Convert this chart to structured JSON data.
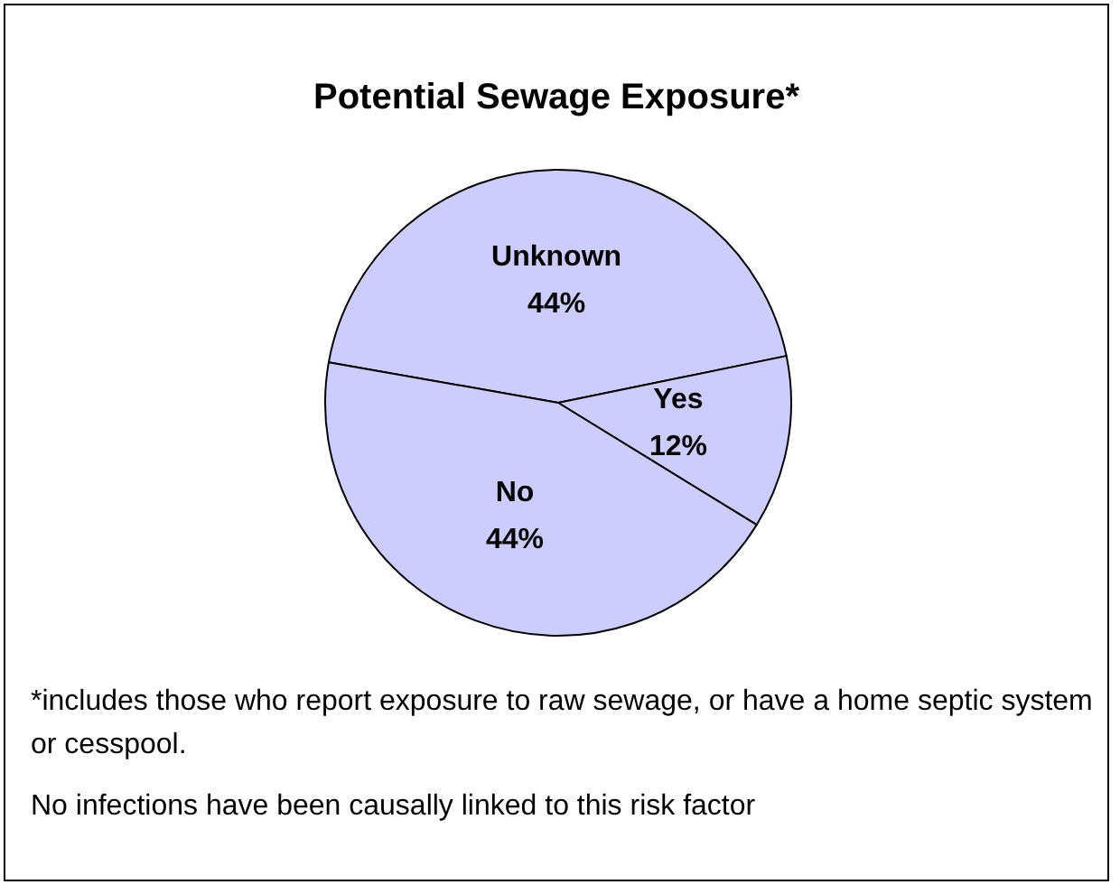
{
  "chart_data": {
    "type": "pie",
    "title": "Potential Sewage Exposure*",
    "categories": [
      "Unknown",
      "Yes",
      "No"
    ],
    "values": [
      44,
      12,
      44
    ],
    "value_labels": [
      "44%",
      "12%",
      "44%"
    ],
    "colors": [
      "#ccccff",
      "#ccccff",
      "#ccccff"
    ],
    "annotations": [
      "*includes those who report exposure to raw sewage, or have a home septic system or cesspool.",
      "No infections have been causally linked to this risk factor"
    ]
  }
}
